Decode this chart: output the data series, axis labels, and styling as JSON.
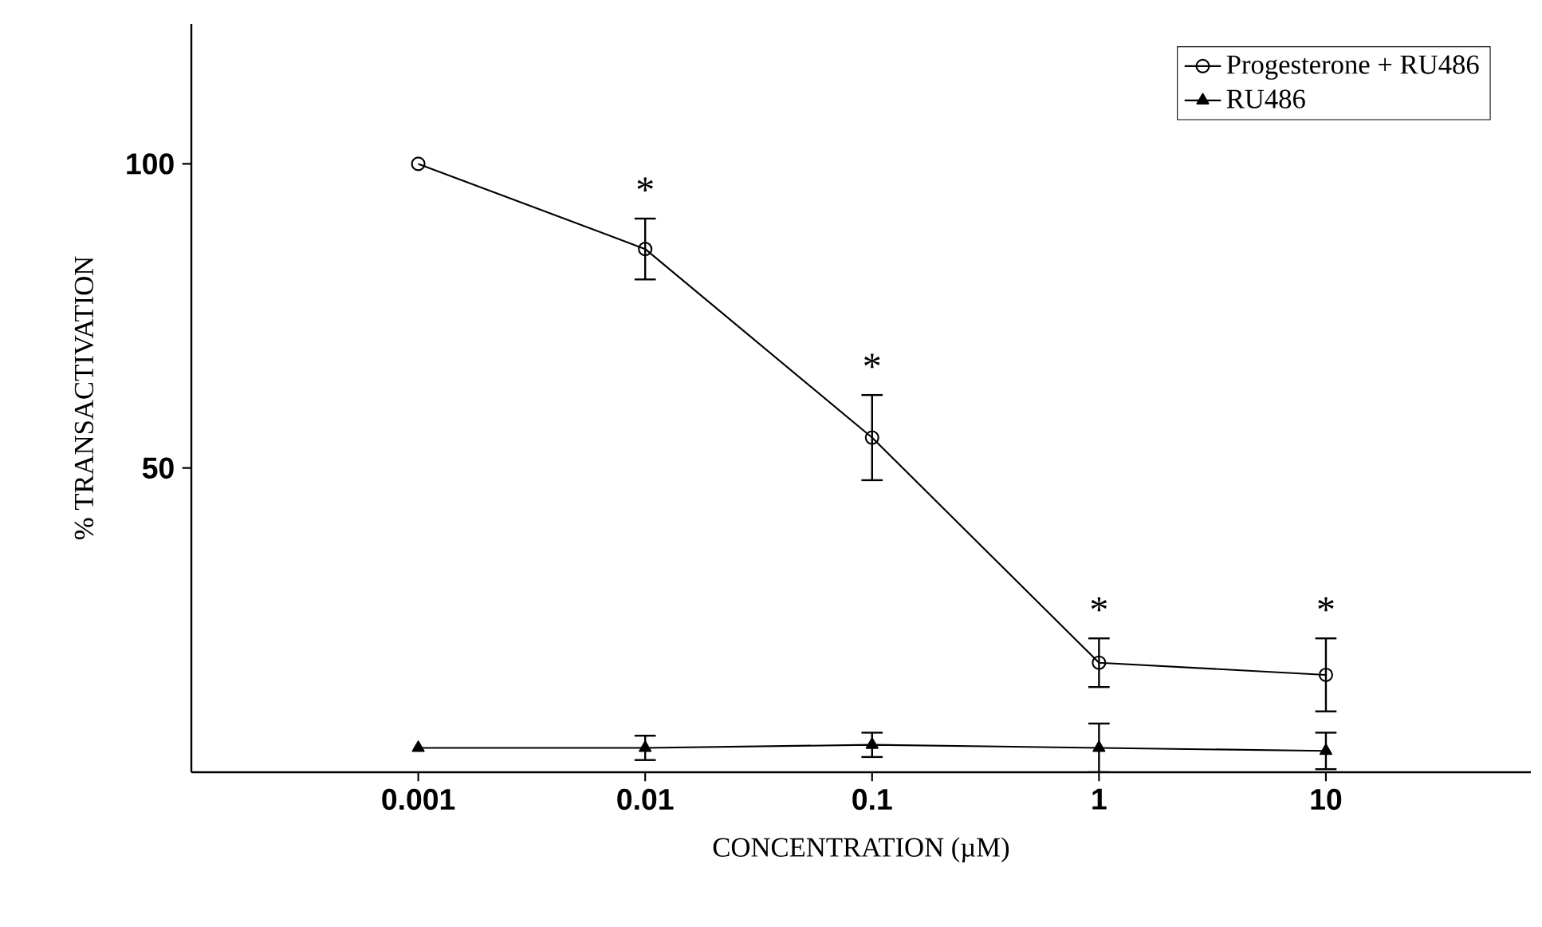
{
  "chart_data": {
    "type": "line",
    "xlabel": "CONCENTRATION (µM)",
    "ylabel": "% TRANSACTIVATION",
    "x": [
      0.001,
      0.01,
      0.1,
      1,
      10
    ],
    "series": [
      {
        "name": "Progesterone + RU486",
        "color": "#000000",
        "marker": "circle",
        "values": [
          100,
          86,
          55,
          18,
          16
        ],
        "errors": [
          null,
          5,
          7,
          4,
          6
        ]
      },
      {
        "name": "RU486",
        "color": "#000000",
        "marker": "triangle",
        "values": [
          4,
          4,
          4.5,
          4,
          3.5
        ],
        "errors": [
          null,
          2,
          2,
          4,
          3
        ]
      }
    ],
    "log": "x",
    "xlim": [
      0.0001,
      80
    ],
    "ylim": [
      0,
      123
    ],
    "xticks": [
      {
        "value": 0.001,
        "label": "0.001"
      },
      {
        "value": 0.01,
        "label": "0.01"
      },
      {
        "value": 0.1,
        "label": "0.1"
      },
      {
        "value": 1,
        "label": "1"
      },
      {
        "value": 10,
        "label": "10"
      }
    ],
    "yticks": [
      50,
      100
    ],
    "annotations": [
      "*",
      "*",
      "*",
      "*"
    ],
    "legend": "top right",
    "grid": false,
    "line_style": "solid"
  }
}
